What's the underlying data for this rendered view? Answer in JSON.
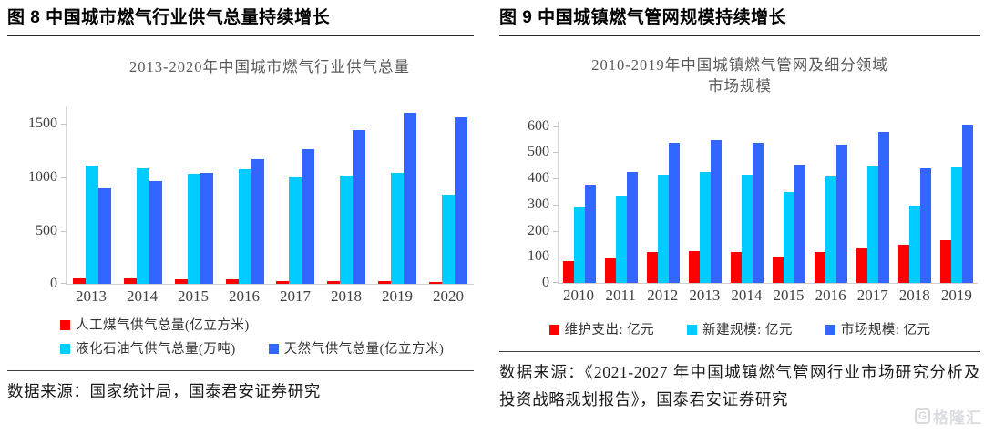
{
  "panels": [
    {
      "header": "图 8 中国城市燃气行业供气总量持续增长",
      "source": "数据来源：国家统计局，国泰君安证券研究"
    },
    {
      "header": "图 9 中国城镇燃气管网规模持续增长",
      "source": "数据来源：《2021-2027 年中国城镇燃气管网行业市场研究分析及投资战略规划报告》，国泰君安证券研究"
    }
  ],
  "chart_data": [
    {
      "type": "bar",
      "title": "2013-2020年中国城市燃气行业供气总量",
      "categories": [
        "2013",
        "2014",
        "2015",
        "2016",
        "2017",
        "2018",
        "2019",
        "2020"
      ],
      "series": [
        {
          "name": "人工煤气供气总量(亿立方米)",
          "color": "#FF0000",
          "values": [
            55,
            50,
            45,
            40,
            26,
            25,
            24,
            19
          ]
        },
        {
          "name": "液化石油气供气总量(万吨)",
          "color": "#00CCFF",
          "values": [
            1110,
            1082,
            1037,
            1078,
            1002,
            1015,
            1040,
            835
          ]
        },
        {
          "name": "天然气供气总量(亿立方米)",
          "color": "#3366FF",
          "values": [
            901,
            964,
            1041,
            1172,
            1264,
            1444,
            1609,
            1564
          ]
        }
      ],
      "xlabel": "",
      "ylabel": "",
      "ylim": [
        0,
        1675
      ],
      "yticks": [
        0,
        500,
        1000,
        1500
      ],
      "grid": false,
      "legend_position": "bottom"
    },
    {
      "type": "bar",
      "title": "2010-2019年中国城镇燃气管网及细分领域市场规模",
      "categories": [
        "2010",
        "2011",
        "2012",
        "2013",
        "2014",
        "2015",
        "2016",
        "2017",
        "2018",
        "2019"
      ],
      "series": [
        {
          "name": "维护支出: 亿元",
          "color": "#FF0000",
          "values": [
            85,
            95,
            120,
            123,
            120,
            102,
            120,
            133,
            145,
            165
          ]
        },
        {
          "name": "新建规模: 亿元",
          "color": "#00CCFF",
          "values": [
            290,
            332,
            415,
            425,
            415,
            350,
            408,
            447,
            295,
            442
          ]
        },
        {
          "name": "市场规模: 亿元",
          "color": "#3366FF",
          "values": [
            375,
            425,
            535,
            548,
            537,
            453,
            528,
            577,
            438,
            607
          ]
        }
      ],
      "xlabel": "",
      "ylabel": "",
      "ylim": [
        0,
        620
      ],
      "yticks": [
        0,
        100,
        200,
        300,
        400,
        500,
        600
      ],
      "grid": false,
      "legend_position": "bottom"
    }
  ],
  "colors": {
    "series_red": "#FF0000",
    "series_cyan": "#00CCFF",
    "series_blue": "#3366FF",
    "axis": "#d6d6d6",
    "tick_text": "#404040",
    "title_text": "#595959"
  },
  "watermark": {
    "icon": "G",
    "text": "格隆汇"
  }
}
